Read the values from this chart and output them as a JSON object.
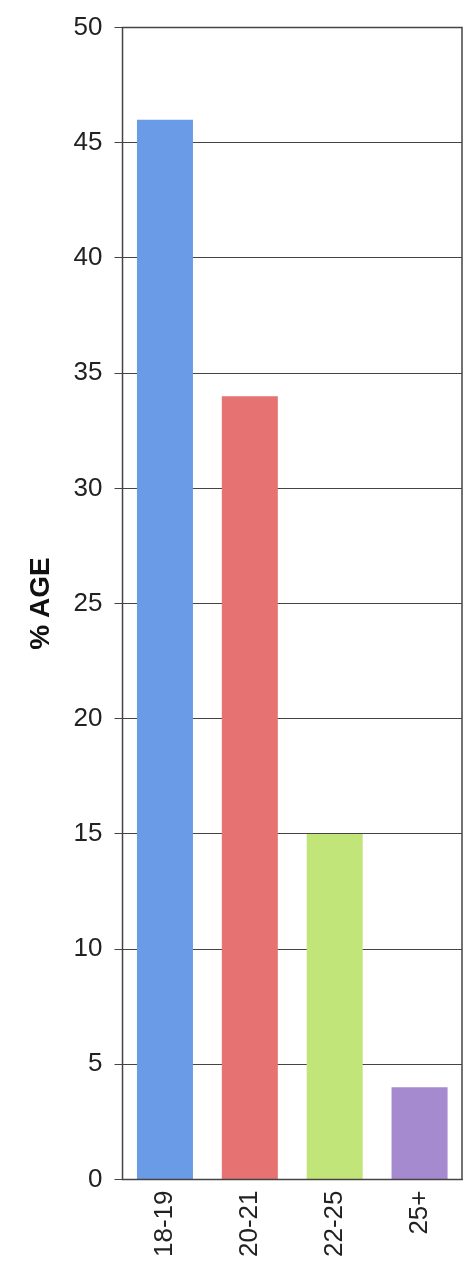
{
  "chart_data": {
    "type": "bar",
    "ylabel": "% AGE",
    "categories": [
      "18-19",
      "20-21",
      "22-25",
      "25+"
    ],
    "values": [
      46,
      34,
      15,
      4
    ],
    "colors": [
      "#6a9be6",
      "#e67272",
      "#c2e57a",
      "#a58ad0"
    ],
    "ylim": [
      0,
      50
    ],
    "yticks": [
      0,
      5,
      10,
      15,
      20,
      25,
      30,
      35,
      40,
      45,
      50
    ],
    "grid": "y"
  }
}
